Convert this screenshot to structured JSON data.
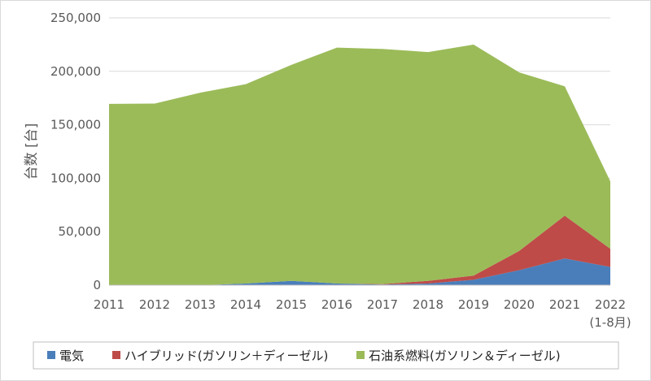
{
  "chart_data": {
    "type": "area",
    "stacked": true,
    "xlabel": "",
    "ylabel": "台数 [台]",
    "ylim": [
      0,
      250000
    ],
    "yticks": [
      "0",
      "50,000",
      "100,000",
      "150,000",
      "200,000",
      "250,000"
    ],
    "categories": [
      "2011",
      "2012",
      "2013",
      "2014",
      "2015",
      "2016",
      "2017",
      "2018",
      "2019",
      "2020",
      "2021",
      "2022"
    ],
    "category_sublabels": [
      "",
      "",
      "",
      "",
      "",
      "",
      "",
      "",
      "",
      "",
      "",
      "(1-8月)"
    ],
    "grid": true,
    "legend_position": "bottom",
    "series": [
      {
        "name": "電気",
        "color": "#4a7ebb",
        "values": [
          0,
          0,
          0,
          1500,
          4000,
          1500,
          500,
          1500,
          5000,
          14000,
          25000,
          17000
        ]
      },
      {
        "name": "ハイブリッド(ガソリン＋ディーゼル)",
        "color": "#be4b48",
        "values": [
          0,
          0,
          0,
          0,
          0,
          0,
          500,
          2500,
          4000,
          18000,
          40000,
          17000
        ]
      },
      {
        "name": "石油系燃料(ガソリン＆ディーゼル)",
        "color": "#9bbb59",
        "values": [
          169500,
          169800,
          180000,
          186500,
          202000,
          220700,
          220000,
          214000,
          216000,
          167000,
          121000,
          63000
        ]
      }
    ]
  }
}
